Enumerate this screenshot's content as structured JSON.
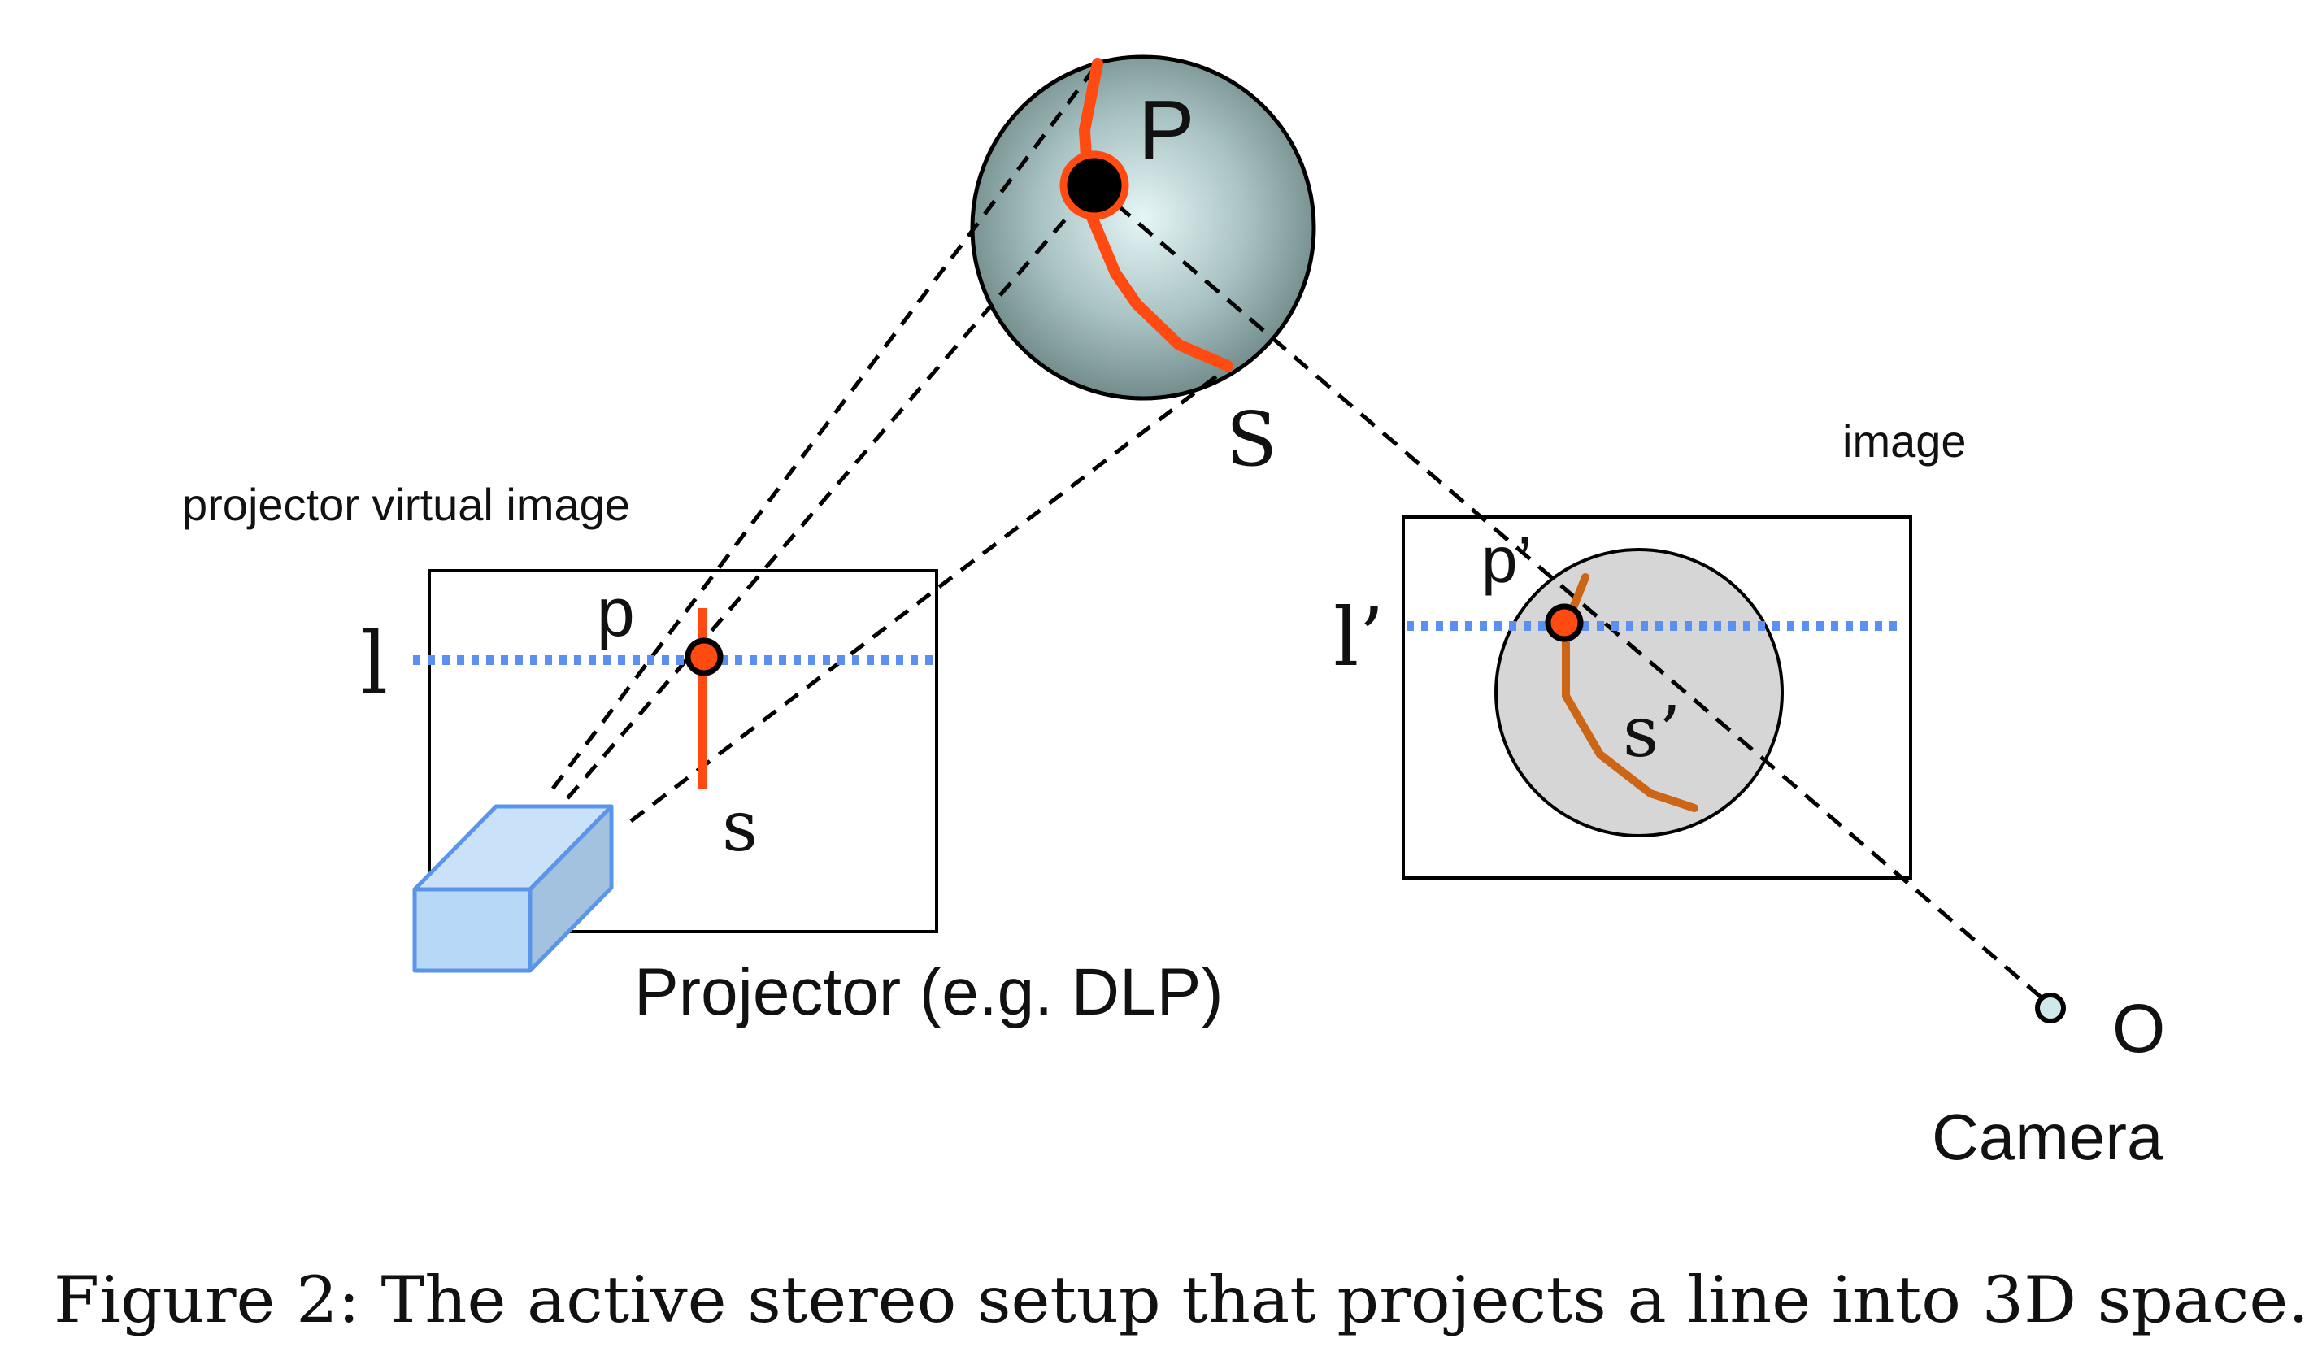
{
  "labels": {
    "P": "P",
    "S": "S",
    "p": "p",
    "s": "s",
    "l": "l",
    "p_prime": "p’",
    "s_prime": "s’",
    "l_prime": "l’",
    "O": "O",
    "projector_virtual_image": "projector virtual image",
    "image": "image",
    "projector": "Projector (e.g. DLP)",
    "camera": "Camera"
  },
  "caption": "Figure 2: The active stereo setup that projects a line into 3D space.",
  "colors": {
    "stripe_red": "#ff4a12",
    "stripe_orange": "#cc6515",
    "epipolar_blue": "#5b8ff0",
    "projector_face": "#b7d8f7",
    "projector_edge": "#5b95ea",
    "sphere_dark": "#6e8787",
    "sphere_light": "#e6f6f7",
    "image_sphere": "#d6d6d6",
    "ink": "#000000"
  }
}
